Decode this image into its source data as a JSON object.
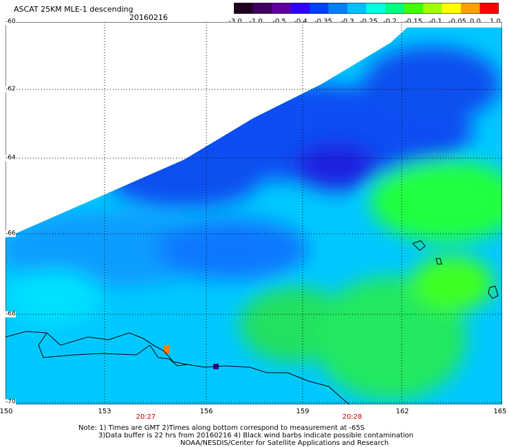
{
  "title": "ASCAT 25KM MLE-1 descending",
  "date": "20160216",
  "colorbar": {
    "tick_labels": [
      "-3.0",
      "-1.0",
      "-0.5",
      "-0.4",
      "-0.35",
      "-0.3",
      "-0.25",
      "-0.2",
      "-0.15",
      "-0.1",
      "-0.05",
      "0.0",
      "1.0"
    ],
    "colors": [
      "#200020",
      "#400060",
      "#6000a0",
      "#3000ff",
      "#0040ff",
      "#0080ff",
      "#00c0ff",
      "#00ffe0",
      "#00ff80",
      "#40ff00",
      "#a0ff00",
      "#ffff00",
      "#ffa000",
      "#ff0000"
    ]
  },
  "latitude_labels": [
    "-60",
    "-62",
    "-64",
    "-66",
    "-68",
    "-70"
  ],
  "longitude_labels": [
    "150",
    "153",
    "156",
    "159",
    "162",
    "165"
  ],
  "time_labels": [
    "20:27",
    "20:28"
  ],
  "notes": {
    "line1": "Note: 1) Times are GMT 2)Times along bottom correspond to measurement at -65S",
    "line2": "3)Data buffer is 22 hrs from 20160216 4) Black wind barbs indicate possible contamination",
    "line3": "NOAA/NESDIS/Center for Satellite Applications and Research"
  }
}
